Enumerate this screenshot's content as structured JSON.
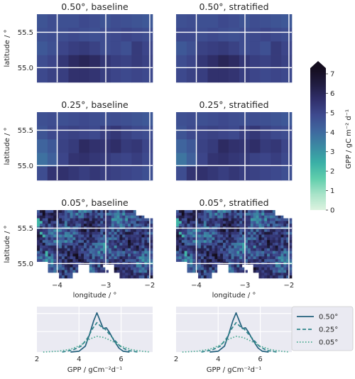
{
  "figure": {
    "colorbar": {
      "label": "GPP / gC m⁻² d⁻¹",
      "ticks": [
        "0",
        "1",
        "2",
        "3",
        "4",
        "5",
        "6",
        "7"
      ],
      "range": [
        0,
        7
      ],
      "extend": "max",
      "colormap_stops": [
        "#ddf3e0",
        "#a8e3c8",
        "#60ceac",
        "#3ab0a6",
        "#3b8ba3",
        "#3f689f",
        "#3e4a8f",
        "#302f6b",
        "#201c40",
        "#140d1e"
      ]
    },
    "legend": {
      "entries": [
        {
          "label": "0.50°",
          "style": "solid",
          "color": "#23607c"
        },
        {
          "label": "0.25°",
          "style": "dashed",
          "color": "#2f858a"
        },
        {
          "label": "0.05°",
          "style": "dotted",
          "color": "#46a98f"
        }
      ]
    },
    "map_axes": {
      "ylabel": "latitude / °",
      "xlabel": "longitude / °",
      "yticks": [
        "55.5",
        "55.0"
      ],
      "xticks": [
        "−4",
        "−3",
        "−2"
      ]
    },
    "dist_axes": {
      "xlabel": "GPP / gCm⁻²d⁻¹",
      "xticks": [
        "2",
        "4",
        "6"
      ]
    }
  },
  "chart_data": [
    {
      "type": "heatmap",
      "title": "0.50°, baseline",
      "grid": [
        [
          4.4,
          4.6,
          4.5,
          4.5,
          4.7,
          4.6,
          4.4,
          4.6,
          4.5,
          4.4,
          4.3
        ],
        [
          4.5,
          4.6,
          4.6,
          4.7,
          4.6,
          4.5,
          4.6,
          4.7,
          4.8,
          4.7,
          4.6
        ],
        [
          4.3,
          4.5,
          4.8,
          5.0,
          5.1,
          4.9,
          4.6,
          4.7,
          4.5,
          5.1,
          4.8
        ],
        [
          4.6,
          4.8,
          5.2,
          5.6,
          5.8,
          5.6,
          5.2,
          5.0,
          4.9,
          5.1,
          4.9
        ],
        [
          4.7,
          4.9,
          5.0,
          5.4,
          5.4,
          5.3,
          5.0,
          4.8,
          4.7,
          4.8,
          4.7
        ]
      ]
    },
    {
      "type": "heatmap",
      "title": "0.50°, stratified",
      "grid": [
        [
          4.5,
          4.6,
          4.5,
          4.5,
          4.7,
          4.6,
          4.4,
          4.6,
          4.5,
          4.4,
          4.3
        ],
        [
          4.7,
          4.7,
          4.6,
          4.7,
          4.6,
          4.5,
          4.6,
          4.7,
          4.8,
          4.7,
          4.6
        ],
        [
          4.3,
          4.5,
          4.9,
          5.0,
          5.1,
          4.9,
          4.6,
          4.7,
          4.5,
          5.1,
          4.8
        ],
        [
          4.6,
          4.8,
          5.2,
          5.5,
          5.8,
          5.6,
          5.2,
          5.0,
          4.9,
          5.1,
          4.9
        ],
        [
          4.7,
          4.9,
          5.0,
          5.4,
          5.4,
          5.3,
          5.0,
          4.8,
          4.7,
          4.8,
          4.7
        ]
      ]
    },
    {
      "type": "heatmap",
      "title": "0.25°, baseline",
      "grid": [
        [
          4.5,
          4.6,
          4.5,
          4.6,
          4.7,
          4.6,
          4.5,
          4.6,
          4.5,
          4.4,
          4.3
        ],
        [
          4.4,
          4.7,
          4.8,
          4.9,
          4.8,
          4.7,
          5.0,
          5.2,
          4.9,
          4.7,
          4.6
        ],
        [
          4.0,
          4.3,
          4.9,
          5.1,
          5.6,
          5.4,
          5.3,
          5.5,
          5.1,
          5.2,
          4.8
        ],
        [
          3.7,
          4.1,
          4.8,
          5.3,
          5.4,
          5.2,
          5.1,
          4.9,
          4.8,
          5.0,
          4.7
        ],
        [
          4.6,
          5.3,
          5.4,
          5.2,
          5.0,
          5.2,
          5.0,
          4.9,
          4.8,
          4.7,
          4.5
        ]
      ]
    },
    {
      "type": "heatmap",
      "title": "0.25°, stratified",
      "grid": [
        [
          4.5,
          4.6,
          4.5,
          4.6,
          4.7,
          4.6,
          4.5,
          4.6,
          4.5,
          4.4,
          4.3
        ],
        [
          4.4,
          4.7,
          4.8,
          4.9,
          4.8,
          4.7,
          5.0,
          5.2,
          4.9,
          4.7,
          4.6
        ],
        [
          4.0,
          4.3,
          4.9,
          5.1,
          5.6,
          5.4,
          5.3,
          5.5,
          5.1,
          5.2,
          4.8
        ],
        [
          3.6,
          4.1,
          4.8,
          5.3,
          5.4,
          5.2,
          5.1,
          4.9,
          4.8,
          5.0,
          4.7
        ],
        [
          4.6,
          5.3,
          5.4,
          5.2,
          5.0,
          5.2,
          5.0,
          4.9,
          4.8,
          4.7,
          4.5
        ]
      ]
    },
    {
      "type": "heatmap",
      "title": "0.05°, baseline",
      "description_of_values": "fine-scale field, GPP mostly 3.5–6.5 with white no-data cells at the top-right and bottom edges"
    },
    {
      "type": "heatmap",
      "title": "0.05°, stratified"
    },
    {
      "type": "line",
      "xlim": [
        2,
        7.5
      ],
      "series": [
        {
          "name": "0.50°",
          "x": [
            3.6,
            4.0,
            4.3,
            4.5,
            4.7,
            4.85,
            5.0,
            5.15,
            5.3,
            5.45,
            5.6,
            5.75,
            5.9,
            6.1,
            6.4
          ],
          "y": [
            0.0,
            0.02,
            0.15,
            0.45,
            0.8,
            1.0,
            0.8,
            0.6,
            0.62,
            0.5,
            0.35,
            0.22,
            0.1,
            0.02,
            0.0
          ]
        },
        {
          "name": "0.25°",
          "x": [
            3.2,
            3.7,
            4.1,
            4.4,
            4.65,
            4.85,
            5.05,
            5.25,
            5.45,
            5.7,
            5.95,
            6.3,
            6.8
          ],
          "y": [
            0.0,
            0.05,
            0.15,
            0.35,
            0.6,
            0.75,
            0.65,
            0.58,
            0.45,
            0.3,
            0.15,
            0.04,
            0.0
          ]
        },
        {
          "name": "0.05°",
          "x": [
            2.3,
            3.0,
            3.6,
            4.1,
            4.5,
            4.85,
            5.2,
            5.6,
            6.0,
            6.5,
            7.0,
            7.4
          ],
          "y": [
            0.0,
            0.02,
            0.07,
            0.18,
            0.33,
            0.4,
            0.37,
            0.27,
            0.15,
            0.06,
            0.02,
            0.0
          ]
        }
      ]
    },
    {
      "type": "line",
      "xlim": [
        2,
        7.5
      ],
      "series": [
        {
          "name": "0.50°",
          "x": [
            3.6,
            4.0,
            4.3,
            4.5,
            4.7,
            4.85,
            5.0,
            5.15,
            5.3,
            5.45,
            5.6,
            5.75,
            5.9,
            6.1,
            6.4
          ],
          "y": [
            0.0,
            0.02,
            0.15,
            0.45,
            0.8,
            1.0,
            0.8,
            0.6,
            0.62,
            0.5,
            0.35,
            0.22,
            0.1,
            0.02,
            0.0
          ]
        },
        {
          "name": "0.25°",
          "x": [
            3.2,
            3.7,
            4.1,
            4.4,
            4.65,
            4.85,
            5.05,
            5.25,
            5.45,
            5.7,
            5.95,
            6.3,
            6.8
          ],
          "y": [
            0.0,
            0.05,
            0.15,
            0.35,
            0.6,
            0.75,
            0.65,
            0.58,
            0.45,
            0.3,
            0.15,
            0.04,
            0.0
          ]
        },
        {
          "name": "0.05°",
          "x": [
            2.3,
            3.0,
            3.6,
            4.1,
            4.5,
            4.85,
            5.2,
            5.6,
            6.0,
            6.5,
            7.0,
            7.4
          ],
          "y": [
            0.0,
            0.02,
            0.07,
            0.18,
            0.33,
            0.4,
            0.37,
            0.27,
            0.15,
            0.06,
            0.02,
            0.0
          ]
        }
      ]
    }
  ]
}
